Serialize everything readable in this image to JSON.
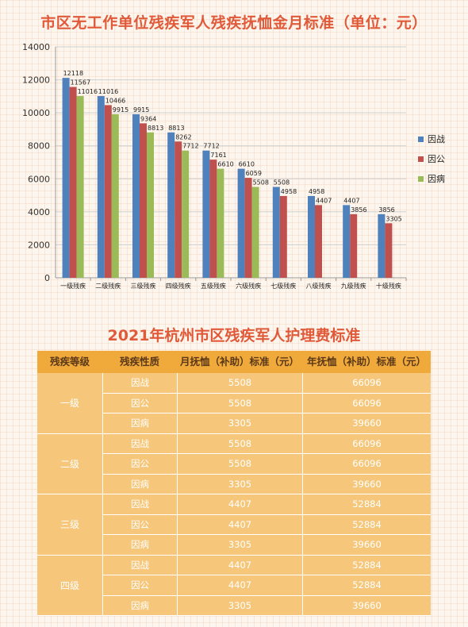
{
  "chart_data": {
    "type": "bar",
    "title": "市区无工作单位残疾军人残疾抚恤金月标准（单位：元）",
    "categories": [
      "一级残疾",
      "二级残疾",
      "三级残疾",
      "四级残疾",
      "五级残疾",
      "六级残疾",
      "七级残疾",
      "八级残疾",
      "九级残疾",
      "十级残疾"
    ],
    "series": [
      {
        "name": "因战",
        "color": "#4f81bd",
        "values": [
          12118,
          11016,
          9915,
          8813,
          7712,
          6610,
          5508,
          4958,
          4407,
          3856
        ]
      },
      {
        "name": "因公",
        "color": "#c0504d",
        "values": [
          11567,
          10466,
          9364,
          8262,
          7161,
          6059,
          4958,
          4407,
          3856,
          3305
        ]
      },
      {
        "name": "因病",
        "color": "#9bbb59",
        "values": [
          11016,
          9915,
          8813,
          7712,
          6610,
          5508,
          null,
          null,
          null,
          null
        ]
      }
    ],
    "ylim": [
      0,
      14000
    ],
    "yticks": [
      0,
      2000,
      4000,
      6000,
      8000,
      10000,
      12000,
      14000
    ],
    "grid": true,
    "legend": "right"
  },
  "table": {
    "title": "2021年杭州市区残疾军人护理费标准",
    "headers": [
      "残疾等级",
      "残疾性质",
      "月抚恤（补助）标准（元）",
      "年抚恤（补助）标准（元）"
    ],
    "groups": [
      {
        "level": "一级",
        "rows": [
          [
            "因战",
            "5508",
            "66096"
          ],
          [
            "因公",
            "5508",
            "66096"
          ],
          [
            "因病",
            "3305",
            "39660"
          ]
        ]
      },
      {
        "level": "二级",
        "rows": [
          [
            "因战",
            "5508",
            "66096"
          ],
          [
            "因公",
            "5508",
            "66096"
          ],
          [
            "因病",
            "3305",
            "39660"
          ]
        ]
      },
      {
        "level": "三级",
        "rows": [
          [
            "因战",
            "4407",
            "52884"
          ],
          [
            "因公",
            "4407",
            "52884"
          ],
          [
            "因病",
            "3305",
            "39660"
          ]
        ]
      },
      {
        "level": "四级",
        "rows": [
          [
            "因战",
            "4407",
            "52884"
          ],
          [
            "因公",
            "4407",
            "52884"
          ],
          [
            "因病",
            "3305",
            "39660"
          ]
        ]
      }
    ]
  }
}
